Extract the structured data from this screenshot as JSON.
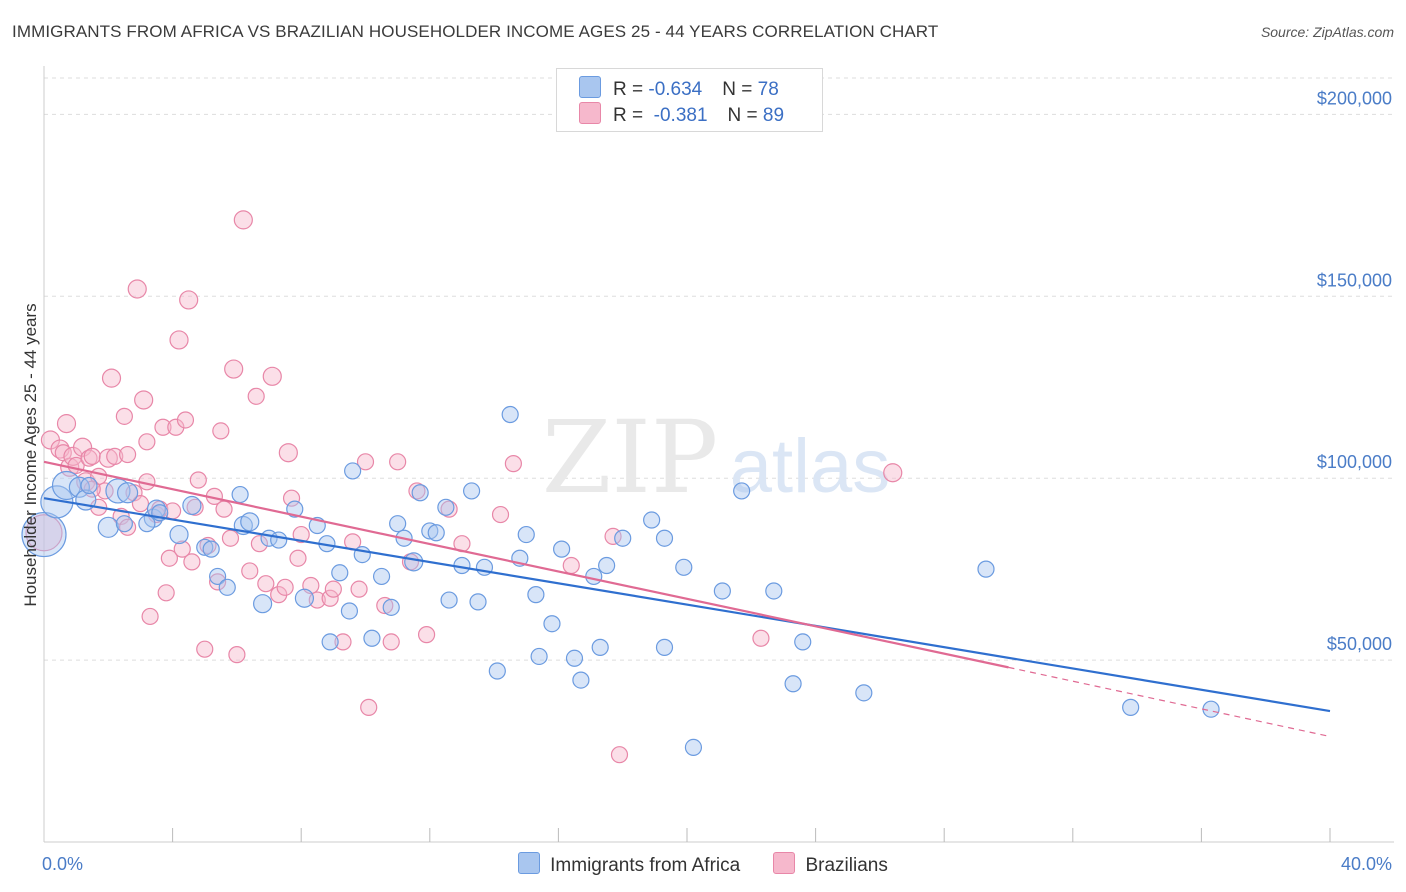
{
  "title": "IMMIGRANTS FROM AFRICA VS BRAZILIAN HOUSEHOLDER INCOME AGES 25 - 44 YEARS CORRELATION CHART",
  "source": "Source: ZipAtlas.com",
  "watermark": {
    "zip": "ZIP",
    "atlas": "atlas"
  },
  "colors": {
    "blue_fill": "#a9c6ef",
    "blue_stroke": "#6b9be0",
    "blue_line": "#2f6fcf",
    "pink_fill": "#f6b8cc",
    "pink_stroke": "#e887a8",
    "pink_line": "#e06a93",
    "axis_text": "#4a7cc7",
    "grid": "#dddddd"
  },
  "legend": {
    "rows": [
      {
        "r_label": "R = ",
        "r_value": "-0.634",
        "n_label": "N = ",
        "n_value": "78"
      },
      {
        "r_label": "R = ",
        "r_value": " -0.381",
        "n_label": "N = ",
        "n_value": "89"
      }
    ]
  },
  "bottom_legend": [
    "Immigrants from Africa",
    "Brazilians"
  ],
  "chart_data": {
    "type": "scatter",
    "title": "IMMIGRANTS FROM AFRICA VS BRAZILIAN HOUSEHOLDER INCOME AGES 25 - 44 YEARS CORRELATION CHART",
    "xlabel": "",
    "ylabel": "Householder Income Ages 25 - 44 years",
    "xlim": [
      0,
      40
    ],
    "ylim": [
      0,
      210000
    ],
    "x_tick_labels": [
      "0.0%",
      "40.0%"
    ],
    "y_ticks": [
      50000,
      100000,
      150000,
      200000
    ],
    "y_tick_labels": [
      "$50,000",
      "$100,000",
      "$150,000",
      "$200,000"
    ],
    "grid": "horizontal dashed",
    "legend_position": "top-center",
    "series": [
      {
        "name": "Immigrants from Africa",
        "r": -0.634,
        "n": 78,
        "trend": {
          "x0": 0,
          "y0": 94500,
          "x1": 40,
          "y1": 36000
        },
        "points": [
          [
            0.0,
            84500,
            22
          ],
          [
            0.4,
            93500,
            16
          ],
          [
            0.7,
            98000,
            14
          ],
          [
            1.1,
            97500,
            10
          ],
          [
            1.3,
            94000,
            10
          ],
          [
            1.4,
            98000,
            8
          ],
          [
            2.0,
            86500,
            10
          ],
          [
            2.3,
            96500,
            12
          ],
          [
            2.5,
            87500,
            8
          ],
          [
            2.6,
            96000,
            10
          ],
          [
            3.4,
            89000,
            9
          ],
          [
            3.5,
            91500,
            9
          ],
          [
            3.6,
            90500,
            8
          ],
          [
            3.2,
            87500,
            8
          ],
          [
            4.2,
            84500,
            9
          ],
          [
            4.6,
            92500,
            9
          ],
          [
            5.0,
            81000,
            8
          ],
          [
            5.2,
            80500,
            8
          ],
          [
            5.4,
            73000,
            8
          ],
          [
            5.7,
            70000,
            8
          ],
          [
            6.2,
            87000,
            9
          ],
          [
            6.1,
            95500,
            8
          ],
          [
            6.4,
            88000,
            9
          ],
          [
            6.8,
            65500,
            9
          ],
          [
            7.0,
            83500,
            8
          ],
          [
            7.3,
            83000,
            8
          ],
          [
            7.8,
            91500,
            8
          ],
          [
            8.1,
            67000,
            9
          ],
          [
            8.5,
            87000,
            8
          ],
          [
            8.8,
            82000,
            8
          ],
          [
            8.9,
            55000,
            8
          ],
          [
            9.2,
            74000,
            8
          ],
          [
            9.5,
            63500,
            8
          ],
          [
            9.6,
            102000,
            8
          ],
          [
            9.9,
            79000,
            8
          ],
          [
            10.2,
            56000,
            8
          ],
          [
            10.5,
            73000,
            8
          ],
          [
            10.8,
            64500,
            8
          ],
          [
            11.0,
            87500,
            8
          ],
          [
            11.2,
            83500,
            8
          ],
          [
            11.5,
            77000,
            9
          ],
          [
            11.7,
            96000,
            8
          ],
          [
            12.0,
            85500,
            8
          ],
          [
            12.2,
            85000,
            8
          ],
          [
            12.5,
            92000,
            8
          ],
          [
            12.6,
            66500,
            8
          ],
          [
            13.0,
            76000,
            8
          ],
          [
            13.3,
            96500,
            8
          ],
          [
            13.5,
            66000,
            8
          ],
          [
            13.7,
            75500,
            8
          ],
          [
            14.1,
            47000,
            8
          ],
          [
            14.5,
            117500,
            8
          ],
          [
            14.8,
            78000,
            8
          ],
          [
            15.0,
            84500,
            8
          ],
          [
            15.3,
            68000,
            8
          ],
          [
            15.4,
            51000,
            8
          ],
          [
            15.8,
            60000,
            8
          ],
          [
            16.1,
            80500,
            8
          ],
          [
            16.5,
            50500,
            8
          ],
          [
            16.7,
            44500,
            8
          ],
          [
            17.1,
            73000,
            8
          ],
          [
            17.5,
            76000,
            8
          ],
          [
            17.3,
            53500,
            8
          ],
          [
            18.0,
            83500,
            8
          ],
          [
            18.9,
            88500,
            8
          ],
          [
            19.3,
            53500,
            8
          ],
          [
            19.9,
            75500,
            8
          ],
          [
            20.2,
            26000,
            8
          ],
          [
            21.1,
            69000,
            8
          ],
          [
            21.7,
            96500,
            8
          ],
          [
            22.7,
            69000,
            8
          ],
          [
            23.3,
            43500,
            8
          ],
          [
            23.6,
            55000,
            8
          ],
          [
            25.5,
            41000,
            8
          ],
          [
            29.3,
            75000,
            8
          ],
          [
            33.8,
            37000,
            8
          ],
          [
            36.3,
            36500,
            8
          ],
          [
            19.3,
            83500,
            8
          ]
        ]
      },
      {
        "name": "Brazilians",
        "r": -0.381,
        "n": 89,
        "trend": {
          "x0": 0,
          "y0": 104500,
          "x1": 30,
          "y1": 48000,
          "dash_to_x": 40,
          "dash_to_y": 29000
        },
        "points": [
          [
            0.0,
            85000,
            18
          ],
          [
            0.2,
            110500,
            9
          ],
          [
            0.5,
            108000,
            9
          ],
          [
            0.6,
            107000,
            8
          ],
          [
            0.7,
            115000,
            9
          ],
          [
            0.8,
            103000,
            9
          ],
          [
            0.9,
            106000,
            9
          ],
          [
            1.0,
            103500,
            8
          ],
          [
            1.2,
            108500,
            9
          ],
          [
            1.3,
            99000,
            9
          ],
          [
            1.4,
            105500,
            8
          ],
          [
            1.5,
            106000,
            8
          ],
          [
            1.7,
            100500,
            8
          ],
          [
            1.7,
            92000,
            8
          ],
          [
            1.9,
            96500,
            8
          ],
          [
            2.0,
            105500,
            9
          ],
          [
            2.1,
            127500,
            9
          ],
          [
            2.2,
            106000,
            8
          ],
          [
            2.4,
            89500,
            8
          ],
          [
            2.5,
            117000,
            8
          ],
          [
            2.6,
            106500,
            8
          ],
          [
            2.6,
            86500,
            8
          ],
          [
            2.8,
            96000,
            8
          ],
          [
            2.9,
            152000,
            9
          ],
          [
            3.0,
            93000,
            8
          ],
          [
            3.1,
            121500,
            9
          ],
          [
            3.2,
            110000,
            8
          ],
          [
            3.2,
            99000,
            8
          ],
          [
            3.3,
            62000,
            8
          ],
          [
            3.5,
            90000,
            8
          ],
          [
            3.6,
            91500,
            8
          ],
          [
            3.7,
            114000,
            8
          ],
          [
            3.8,
            68500,
            8
          ],
          [
            3.9,
            78000,
            8
          ],
          [
            4.0,
            91000,
            8
          ],
          [
            4.1,
            114000,
            8
          ],
          [
            4.2,
            138000,
            9
          ],
          [
            4.3,
            80500,
            8
          ],
          [
            4.4,
            116000,
            8
          ],
          [
            4.5,
            149000,
            9
          ],
          [
            4.6,
            77000,
            8
          ],
          [
            4.7,
            92000,
            8
          ],
          [
            4.8,
            99500,
            8
          ],
          [
            5.0,
            53000,
            8
          ],
          [
            5.1,
            81500,
            8
          ],
          [
            5.3,
            95000,
            8
          ],
          [
            5.4,
            71500,
            8
          ],
          [
            5.5,
            113000,
            8
          ],
          [
            5.6,
            91500,
            8
          ],
          [
            5.8,
            83500,
            8
          ],
          [
            5.9,
            130000,
            9
          ],
          [
            6.0,
            51500,
            8
          ],
          [
            6.2,
            171000,
            9
          ],
          [
            6.4,
            74500,
            8
          ],
          [
            6.6,
            122500,
            8
          ],
          [
            6.7,
            82000,
            8
          ],
          [
            6.9,
            71000,
            8
          ],
          [
            7.1,
            128000,
            9
          ],
          [
            7.3,
            68000,
            8
          ],
          [
            7.5,
            70000,
            8
          ],
          [
            7.6,
            107000,
            9
          ],
          [
            7.7,
            94500,
            8
          ],
          [
            7.9,
            78000,
            8
          ],
          [
            8.0,
            84500,
            8
          ],
          [
            8.3,
            70500,
            8
          ],
          [
            8.5,
            66500,
            8
          ],
          [
            8.9,
            67000,
            8
          ],
          [
            9.0,
            69500,
            8
          ],
          [
            9.3,
            55000,
            8
          ],
          [
            9.6,
            82500,
            8
          ],
          [
            9.8,
            69500,
            8
          ],
          [
            10.0,
            104500,
            8
          ],
          [
            10.1,
            37000,
            8
          ],
          [
            10.6,
            65000,
            8
          ],
          [
            10.8,
            55000,
            8
          ],
          [
            11.0,
            104500,
            8
          ],
          [
            11.4,
            77000,
            8
          ],
          [
            11.6,
            96500,
            8
          ],
          [
            11.9,
            57000,
            8
          ],
          [
            12.6,
            91500,
            8
          ],
          [
            13.0,
            82000,
            8
          ],
          [
            14.2,
            90000,
            8
          ],
          [
            14.6,
            104000,
            8
          ],
          [
            16.4,
            76000,
            8
          ],
          [
            17.7,
            84000,
            8
          ],
          [
            17.9,
            24000,
            8
          ],
          [
            22.3,
            56000,
            8
          ],
          [
            26.4,
            101500,
            9
          ],
          [
            1.5,
            97000,
            8
          ]
        ]
      }
    ]
  }
}
